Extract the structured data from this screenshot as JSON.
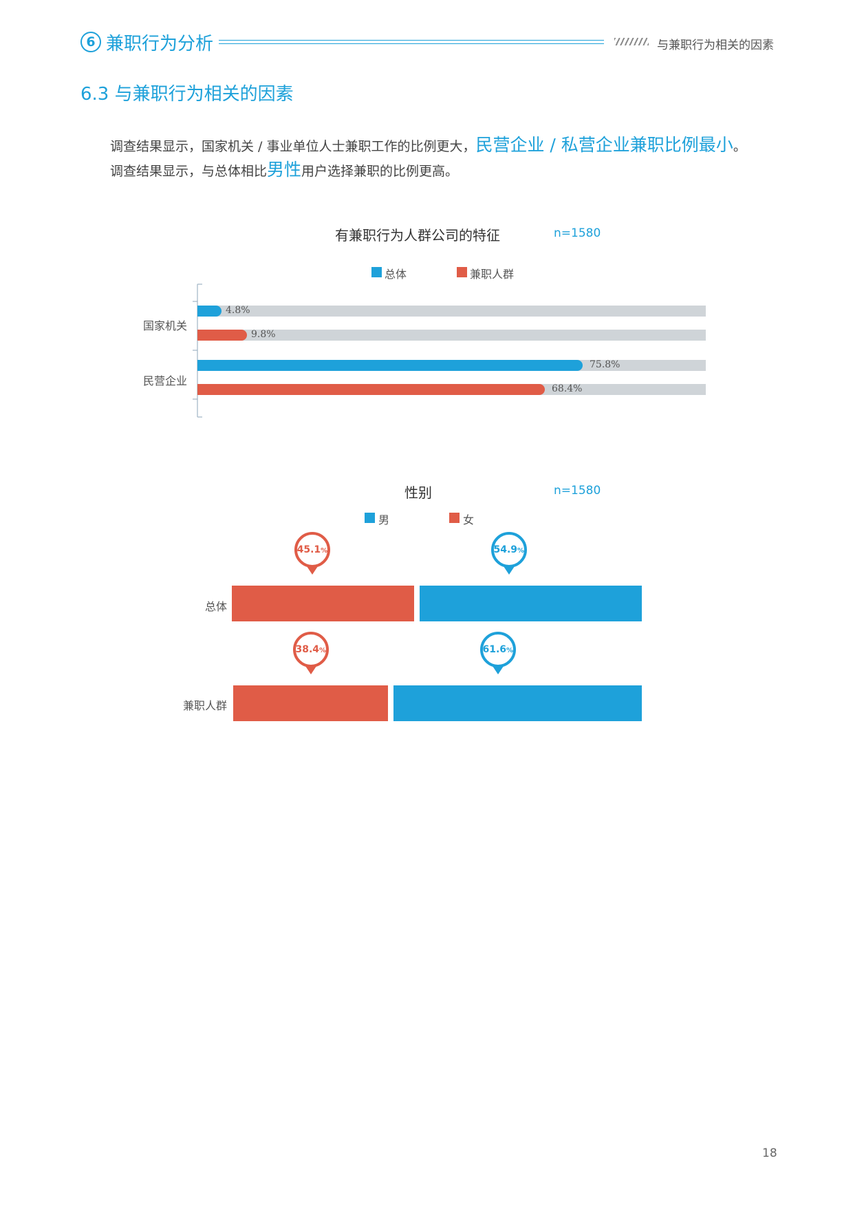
{
  "header": {
    "section_number": "6",
    "section_title": "兼职行为分析",
    "right_text": "与兼职行为相关的因素"
  },
  "subsection_title": "6.3 与兼职行为相关的因素",
  "paragraph": {
    "line1_prefix": "调查结果显示，国家机关 / 事业单位人士兼职工作的比例更大，",
    "line1_highlight": "民营企业 / 私营企业兼职比例最小",
    "line1_suffix": "。",
    "line2_prefix": "调查结果显示，与总体相比",
    "line2_highlight": "男性",
    "line2_suffix": "用户选择兼职的比例更高。"
  },
  "colors": {
    "blue": "#1ea1da",
    "red": "#e05c47",
    "track": "#cfd4d8"
  },
  "chart_data": [
    {
      "type": "bar",
      "orientation": "horizontal",
      "title": "有兼职行为人群公司的特征",
      "n_label": "n=1580",
      "legend": [
        "总体",
        "兼职人群"
      ],
      "legend_placement": "top",
      "categories": [
        "国家机关",
        "民营企业"
      ],
      "xlim": [
        0,
        100
      ],
      "series": [
        {
          "name": "总体",
          "color": "#1ea1da",
          "values": [
            4.8,
            75.8
          ],
          "labels": [
            "4.8%",
            "75.8%"
          ]
        },
        {
          "name": "兼职人群",
          "color": "#e05c47",
          "values": [
            9.8,
            68.4
          ],
          "labels": [
            "9.8%",
            "68.4%"
          ]
        }
      ]
    },
    {
      "type": "bar",
      "orientation": "horizontal-stacked",
      "title": "性别",
      "n_label": "n=1580",
      "legend": [
        "男",
        "女"
      ],
      "legend_placement": "top",
      "categories": [
        "总体",
        "兼职人群"
      ],
      "series": [
        {
          "name": "女",
          "color": "#e05c47",
          "values": [
            45.1,
            38.4
          ],
          "labels": [
            "45.1",
            "38.4"
          ]
        },
        {
          "name": "男",
          "color": "#1ea1da",
          "values": [
            54.9,
            61.6
          ],
          "labels": [
            "54.9",
            "61.6"
          ]
        }
      ],
      "unit": "%"
    }
  ],
  "page_number": "18"
}
